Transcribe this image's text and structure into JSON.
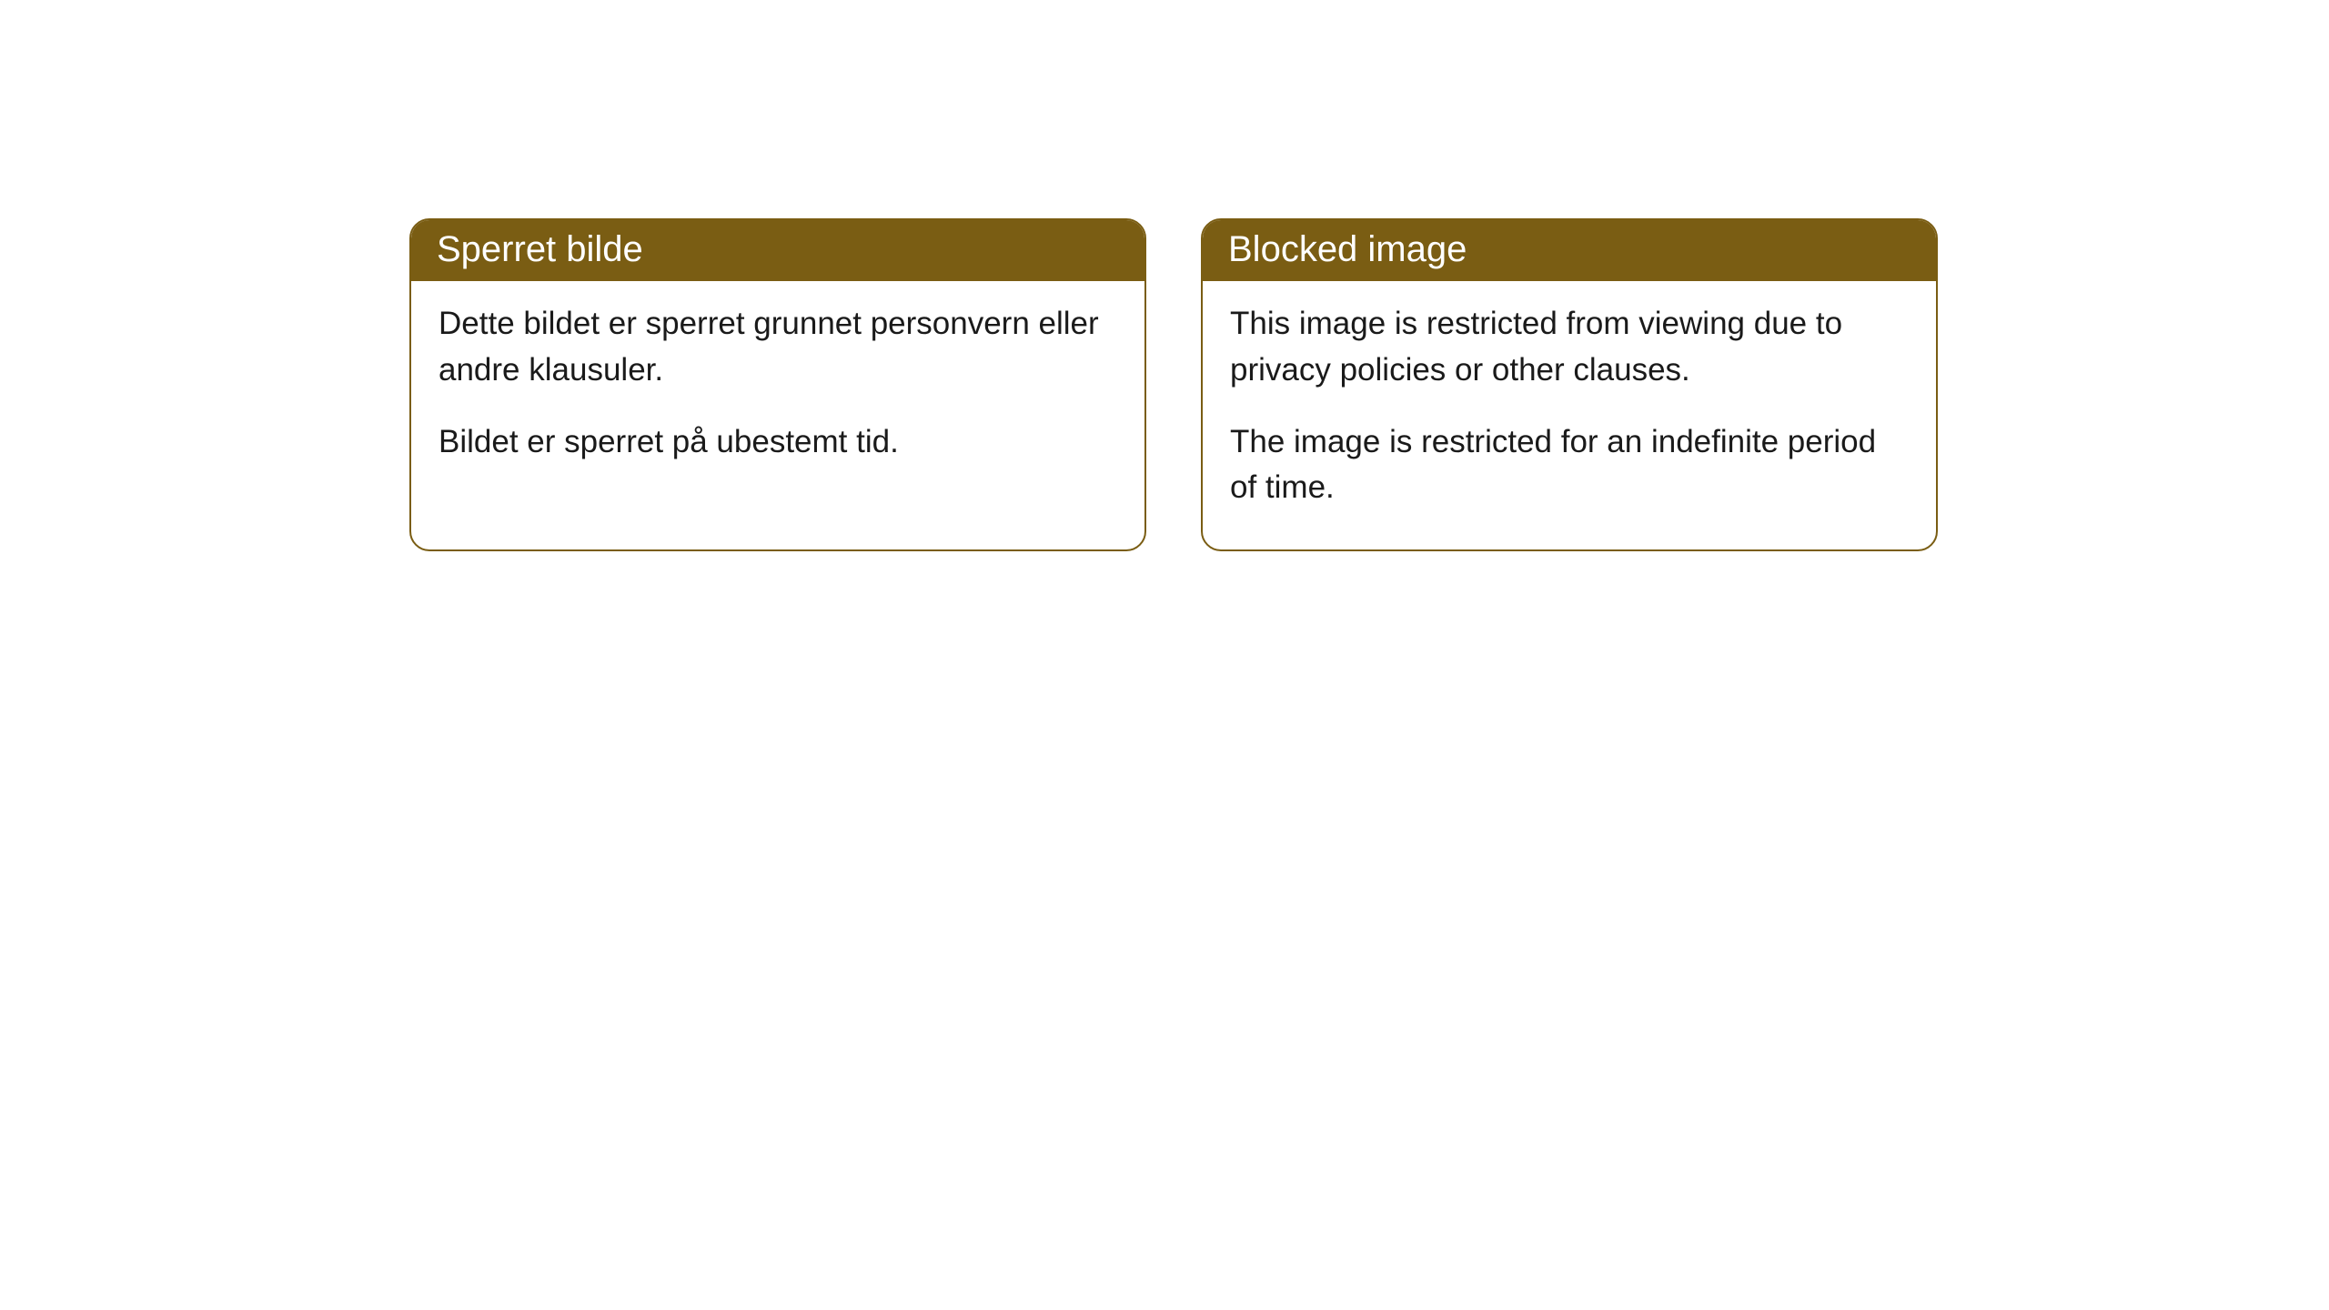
{
  "cards": [
    {
      "title": "Sperret bilde",
      "paragraph1": "Dette bildet er sperret grunnet personvern eller andre klausuler.",
      "paragraph2": "Bildet er sperret på ubestemt tid."
    },
    {
      "title": "Blocked image",
      "paragraph1": "This image is restricted from viewing due to privacy policies or other clauses.",
      "paragraph2": "The image is restricted for an indefinite period of time."
    }
  ],
  "styling": {
    "header_background_color": "#7a5d13",
    "header_text_color": "#ffffff",
    "border_color": "#7a5d13",
    "body_text_color": "#1a1a1a",
    "card_background_color": "#ffffff",
    "page_background_color": "#ffffff",
    "header_fontsize": 40,
    "body_fontsize": 35,
    "border_radius": 22,
    "border_width": 2
  }
}
